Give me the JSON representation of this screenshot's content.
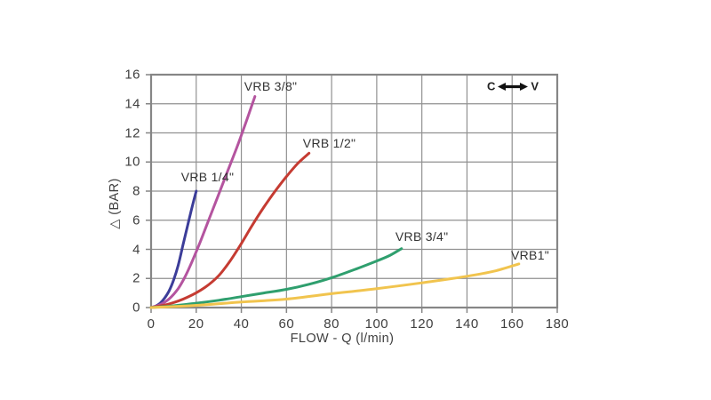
{
  "chart_data": {
    "type": "line",
    "title": "",
    "xlabel": "FLOW - Q (l/min)",
    "ylabel": "△ (BAR)",
    "xlim": [
      0,
      180
    ],
    "ylim": [
      0,
      16
    ],
    "x_ticks": [
      0,
      20,
      40,
      60,
      80,
      100,
      120,
      140,
      160,
      180
    ],
    "y_ticks": [
      0,
      2,
      4,
      6,
      8,
      10,
      12,
      14,
      16
    ],
    "grid": true,
    "legend": {
      "left_label": "C",
      "right_label": "V",
      "icon": "double-arrow",
      "position": "top-right-inside"
    },
    "colors": {
      "grid": "#919191",
      "border": "#868686",
      "text": "#3f3f3f",
      "arrow": "#111111"
    },
    "series": [
      {
        "name": "VRB 1/4\"",
        "color": "#3c3d99",
        "label_at": [
          25,
          9.0
        ],
        "points": [
          [
            0,
            0
          ],
          [
            2,
            0.1
          ],
          [
            4,
            0.3
          ],
          [
            6,
            0.65
          ],
          [
            8,
            1.15
          ],
          [
            10,
            1.9
          ],
          [
            12,
            2.9
          ],
          [
            14,
            4.2
          ],
          [
            16,
            5.5
          ],
          [
            18,
            6.8
          ],
          [
            20,
            8.0
          ]
        ]
      },
      {
        "name": "VRB 3/8\"",
        "color": "#b4549f",
        "label_at": [
          53,
          15.2
        ],
        "points": [
          [
            0,
            0
          ],
          [
            4,
            0.2
          ],
          [
            8,
            0.6
          ],
          [
            12,
            1.3
          ],
          [
            15,
            2.1
          ],
          [
            18,
            3.1
          ],
          [
            22,
            4.6
          ],
          [
            26,
            6.2
          ],
          [
            30,
            7.8
          ],
          [
            34,
            9.4
          ],
          [
            38,
            11.0
          ],
          [
            42,
            12.7
          ],
          [
            46,
            14.5
          ]
        ]
      },
      {
        "name": "VRB 1/2\"",
        "color": "#c53b32",
        "label_at": [
          79,
          11.3
        ],
        "points": [
          [
            0,
            0
          ],
          [
            8,
            0.25
          ],
          [
            16,
            0.7
          ],
          [
            24,
            1.4
          ],
          [
            30,
            2.2
          ],
          [
            35,
            3.2
          ],
          [
            40,
            4.4
          ],
          [
            45,
            5.7
          ],
          [
            50,
            6.9
          ],
          [
            55,
            8.0
          ],
          [
            60,
            9.0
          ],
          [
            65,
            9.9
          ],
          [
            70,
            10.6
          ]
        ]
      },
      {
        "name": "VRB 3/4\"",
        "color": "#2f9f6e",
        "label_at": [
          120,
          4.9
        ],
        "points": [
          [
            0,
            0
          ],
          [
            10,
            0.12
          ],
          [
            20,
            0.3
          ],
          [
            30,
            0.5
          ],
          [
            40,
            0.75
          ],
          [
            50,
            1.0
          ],
          [
            60,
            1.25
          ],
          [
            70,
            1.6
          ],
          [
            80,
            2.05
          ],
          [
            90,
            2.6
          ],
          [
            100,
            3.2
          ],
          [
            106,
            3.6
          ],
          [
            111,
            4.05
          ]
        ]
      },
      {
        "name": "VRB1\"",
        "color": "#f1c44e",
        "label_at": [
          168,
          3.6
        ],
        "points": [
          [
            0,
            0
          ],
          [
            20,
            0.15
          ],
          [
            40,
            0.38
          ],
          [
            60,
            0.58
          ],
          [
            80,
            0.95
          ],
          [
            100,
            1.3
          ],
          [
            120,
            1.7
          ],
          [
            140,
            2.15
          ],
          [
            152,
            2.5
          ],
          [
            163,
            3.0
          ]
        ]
      }
    ]
  }
}
